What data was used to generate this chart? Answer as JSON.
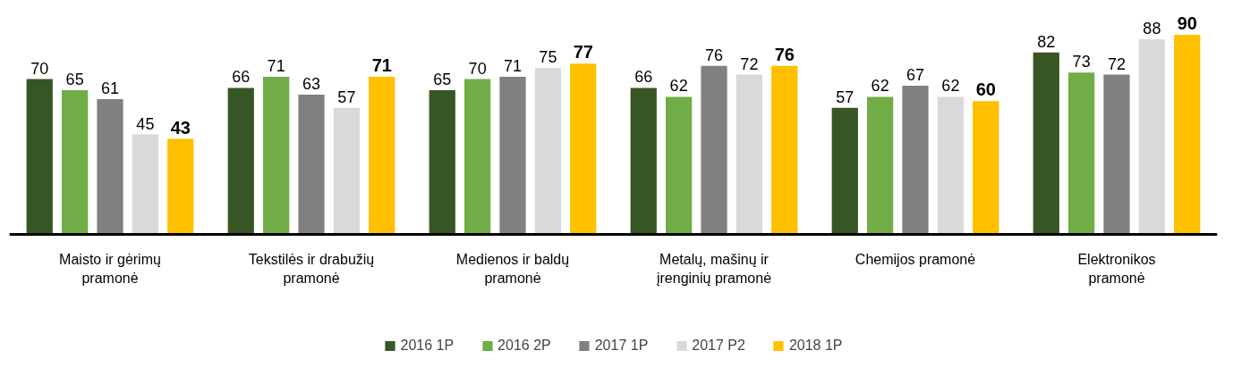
{
  "chart_data": {
    "type": "bar",
    "categories": [
      "Maisto ir gėrimų\npramonė",
      "Tekstilės ir drabužių\npramonė",
      "Medienos ir baldų\npramonė",
      "Metalų, mašinų ir\nįrenginių pramonė",
      "Chemijos pramonė",
      "Elektronikos\npramonė"
    ],
    "series": [
      {
        "name": "2016 1P",
        "color": "#375623",
        "values": [
          70,
          66,
          65,
          66,
          57,
          82
        ]
      },
      {
        "name": "2016 2P",
        "color": "#70ad47",
        "values": [
          65,
          71,
          70,
          62,
          62,
          73
        ]
      },
      {
        "name": "2017 1P",
        "color": "#808080",
        "values": [
          61,
          63,
          71,
          76,
          67,
          72
        ]
      },
      {
        "name": "2017 P2",
        "color": "#d9d9d9",
        "values": [
          45,
          57,
          75,
          72,
          62,
          88
        ]
      },
      {
        "name": "2018 1P",
        "color": "#ffc000",
        "values": [
          43,
          71,
          77,
          76,
          60,
          90
        ]
      }
    ],
    "data_labels": true,
    "grid": false,
    "legend": "bottom",
    "tick_labels": "x"
  }
}
